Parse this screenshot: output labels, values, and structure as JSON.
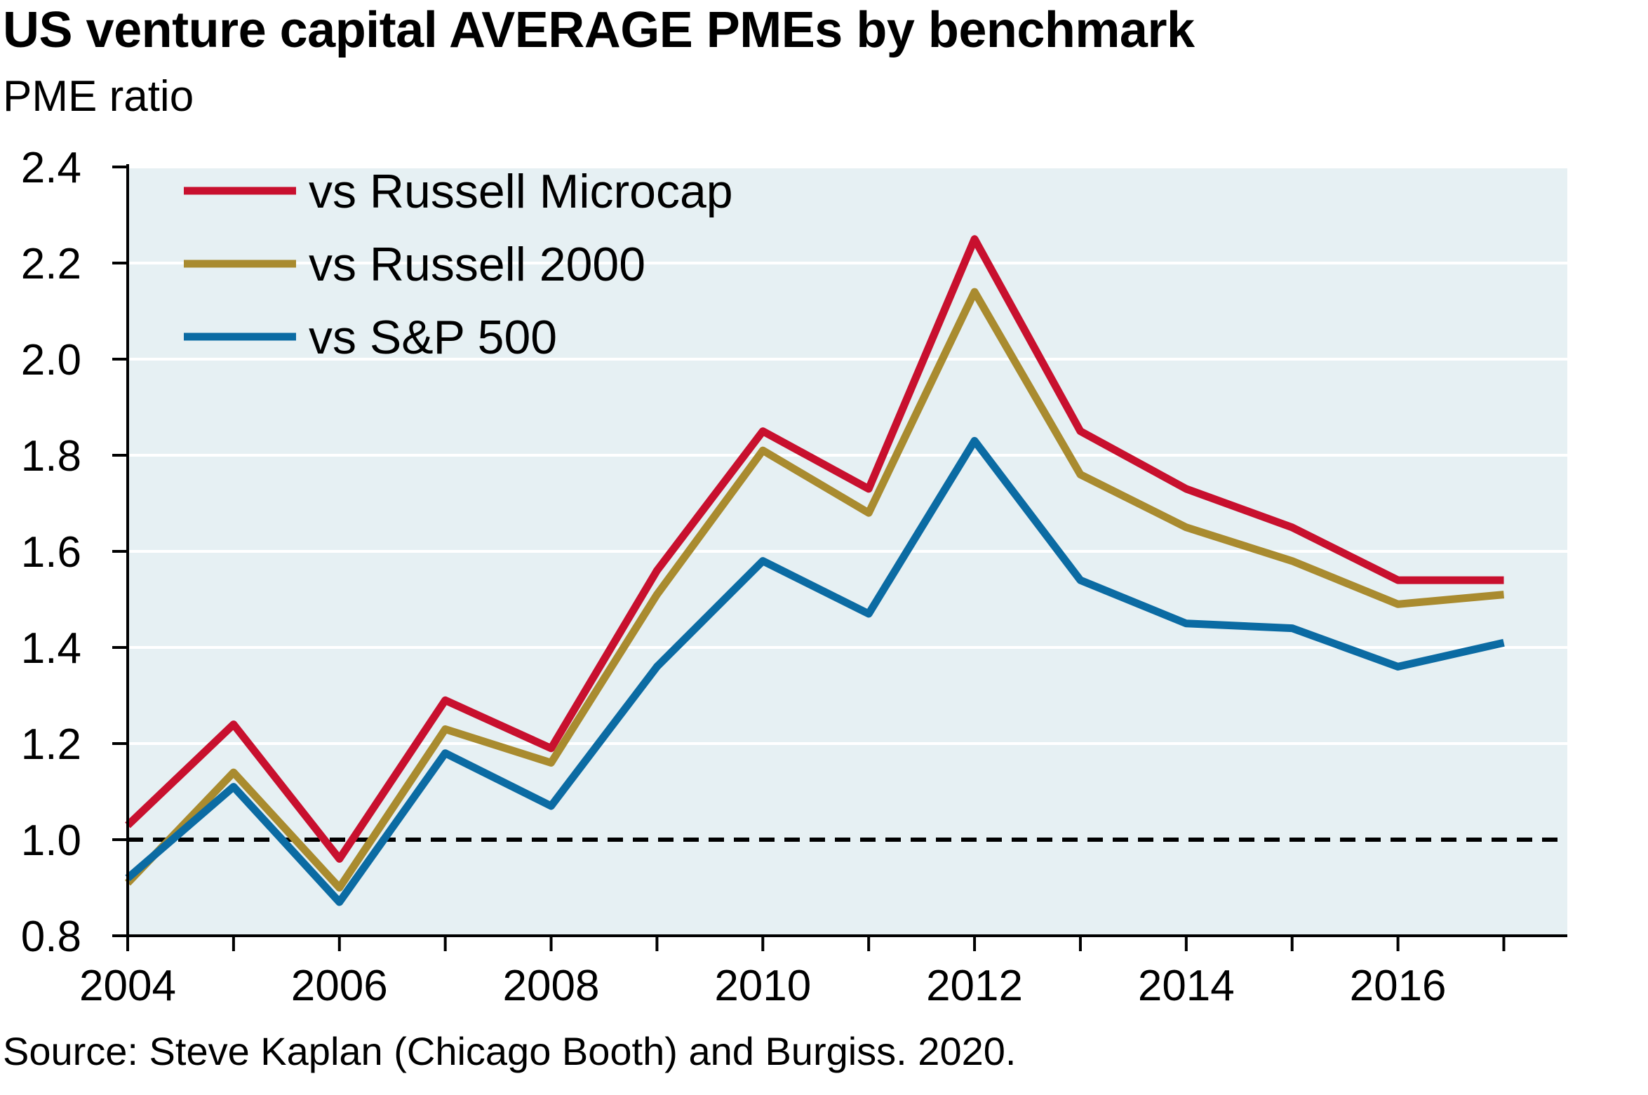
{
  "chart_data": {
    "type": "line",
    "title": "US venture capital AVERAGE PMEs by benchmark",
    "subtitle": "PME ratio",
    "source": "Source: Steve Kaplan (Chicago Booth) and Burgiss. 2020.",
    "x": [
      2004,
      2005,
      2006,
      2007,
      2008,
      2009,
      2010,
      2011,
      2012,
      2013,
      2014,
      2015,
      2016,
      2017
    ],
    "xlim": [
      2004,
      2017.6
    ],
    "x_ticks": [
      2004,
      2006,
      2008,
      2010,
      2012,
      2014,
      2016
    ],
    "x_tick_labels": [
      "2004",
      "2006",
      "2008",
      "2010",
      "2012",
      "2014",
      "2016"
    ],
    "ylim": [
      0.8,
      2.4
    ],
    "y_ticks": [
      0.8,
      1.0,
      1.2,
      1.4,
      1.6,
      1.8,
      2.0,
      2.2,
      2.4
    ],
    "y_tick_labels": [
      "0.8",
      "1.0",
      "1.2",
      "1.4",
      "1.6",
      "1.8",
      "2.0",
      "2.2",
      "2.4"
    ],
    "grid": true,
    "reference_line": {
      "y": 1.0,
      "style": "dashed",
      "color": "#000000"
    },
    "legend_position": "top-left",
    "plot_background": "#e6f0f3",
    "series": [
      {
        "name": "vs Russell Microcap",
        "color": "#c8102e",
        "values": [
          1.03,
          1.24,
          0.96,
          1.29,
          1.19,
          1.56,
          1.85,
          1.73,
          2.25,
          1.85,
          1.73,
          1.65,
          1.54,
          1.54
        ]
      },
      {
        "name": "vs Russell 2000",
        "color": "#a98b2f",
        "values": [
          0.91,
          1.14,
          0.9,
          1.23,
          1.16,
          1.51,
          1.81,
          1.68,
          2.14,
          1.76,
          1.65,
          1.58,
          1.49,
          1.51
        ]
      },
      {
        "name": "vs S&P 500",
        "color": "#0b6ba3",
        "values": [
          0.92,
          1.11,
          0.87,
          1.18,
          1.07,
          1.36,
          1.58,
          1.47,
          1.83,
          1.54,
          1.45,
          1.44,
          1.36,
          1.41
        ]
      }
    ]
  }
}
